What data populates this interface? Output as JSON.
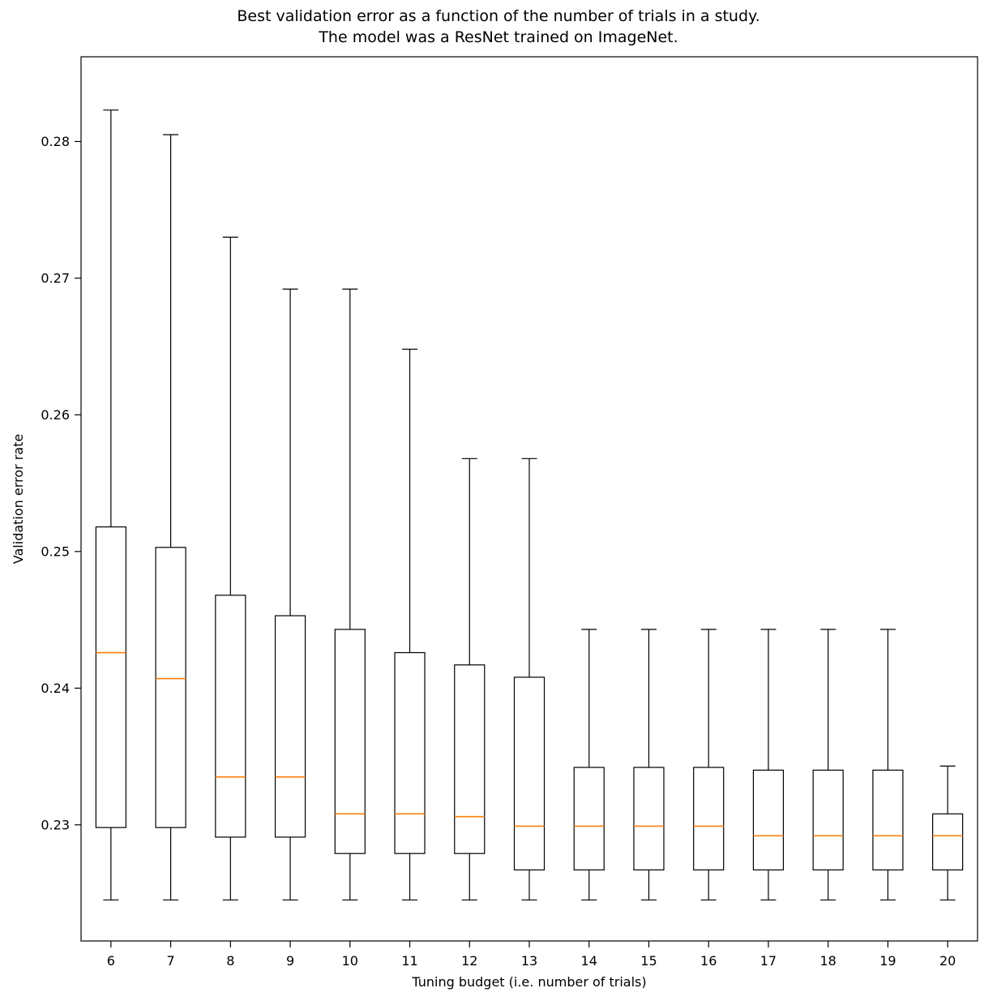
{
  "chart_data": {
    "type": "boxplot",
    "title_lines": [
      "Best validation error as a function of the number of trials in a study.",
      "The model was a ResNet trained on ImageNet."
    ],
    "xlabel": "Tuning budget (i.e. number of trials)",
    "ylabel": "Validation error rate",
    "categories": [
      "6",
      "7",
      "8",
      "9",
      "10",
      "11",
      "12",
      "13",
      "14",
      "15",
      "16",
      "17",
      "18",
      "19",
      "20"
    ],
    "ytick_values": [
      0.23,
      0.24,
      0.25,
      0.26,
      0.27,
      0.28
    ],
    "ytick_labels": [
      "0.23",
      "0.24",
      "0.25",
      "0.26",
      "0.27",
      "0.28"
    ],
    "ylim": [
      0.2215,
      0.2862
    ],
    "grid": false,
    "legend": "none",
    "colors": {
      "box_edge": "#000000",
      "median": "#ff7f0e",
      "background": "#ffffff"
    },
    "boxes": [
      {
        "budget": 6,
        "whislo": 0.2245,
        "q1": 0.2298,
        "med": 0.2426,
        "q3": 0.2518,
        "whishi": 0.2823
      },
      {
        "budget": 7,
        "whislo": 0.2245,
        "q1": 0.2298,
        "med": 0.2407,
        "q3": 0.2503,
        "whishi": 0.2805
      },
      {
        "budget": 8,
        "whislo": 0.2245,
        "q1": 0.2291,
        "med": 0.2335,
        "q3": 0.2468,
        "whishi": 0.273
      },
      {
        "budget": 9,
        "whislo": 0.2245,
        "q1": 0.2291,
        "med": 0.2335,
        "q3": 0.2453,
        "whishi": 0.2692
      },
      {
        "budget": 10,
        "whislo": 0.2245,
        "q1": 0.2279,
        "med": 0.2308,
        "q3": 0.2443,
        "whishi": 0.2692
      },
      {
        "budget": 11,
        "whislo": 0.2245,
        "q1": 0.2279,
        "med": 0.2308,
        "q3": 0.2426,
        "whishi": 0.2648
      },
      {
        "budget": 12,
        "whislo": 0.2245,
        "q1": 0.2279,
        "med": 0.2306,
        "q3": 0.2417,
        "whishi": 0.2568
      },
      {
        "budget": 13,
        "whislo": 0.2245,
        "q1": 0.2267,
        "med": 0.2299,
        "q3": 0.2408,
        "whishi": 0.2568
      },
      {
        "budget": 14,
        "whislo": 0.2245,
        "q1": 0.2267,
        "med": 0.2299,
        "q3": 0.2342,
        "whishi": 0.2443
      },
      {
        "budget": 15,
        "whislo": 0.2245,
        "q1": 0.2267,
        "med": 0.2299,
        "q3": 0.2342,
        "whishi": 0.2443
      },
      {
        "budget": 16,
        "whislo": 0.2245,
        "q1": 0.2267,
        "med": 0.2299,
        "q3": 0.2342,
        "whishi": 0.2443
      },
      {
        "budget": 17,
        "whislo": 0.2245,
        "q1": 0.2267,
        "med": 0.2292,
        "q3": 0.234,
        "whishi": 0.2443
      },
      {
        "budget": 18,
        "whislo": 0.2245,
        "q1": 0.2267,
        "med": 0.2292,
        "q3": 0.234,
        "whishi": 0.2443
      },
      {
        "budget": 19,
        "whislo": 0.2245,
        "q1": 0.2267,
        "med": 0.2292,
        "q3": 0.234,
        "whishi": 0.2443
      },
      {
        "budget": 20,
        "whislo": 0.2245,
        "q1": 0.2267,
        "med": 0.2292,
        "q3": 0.2308,
        "whishi": 0.2343
      }
    ]
  }
}
